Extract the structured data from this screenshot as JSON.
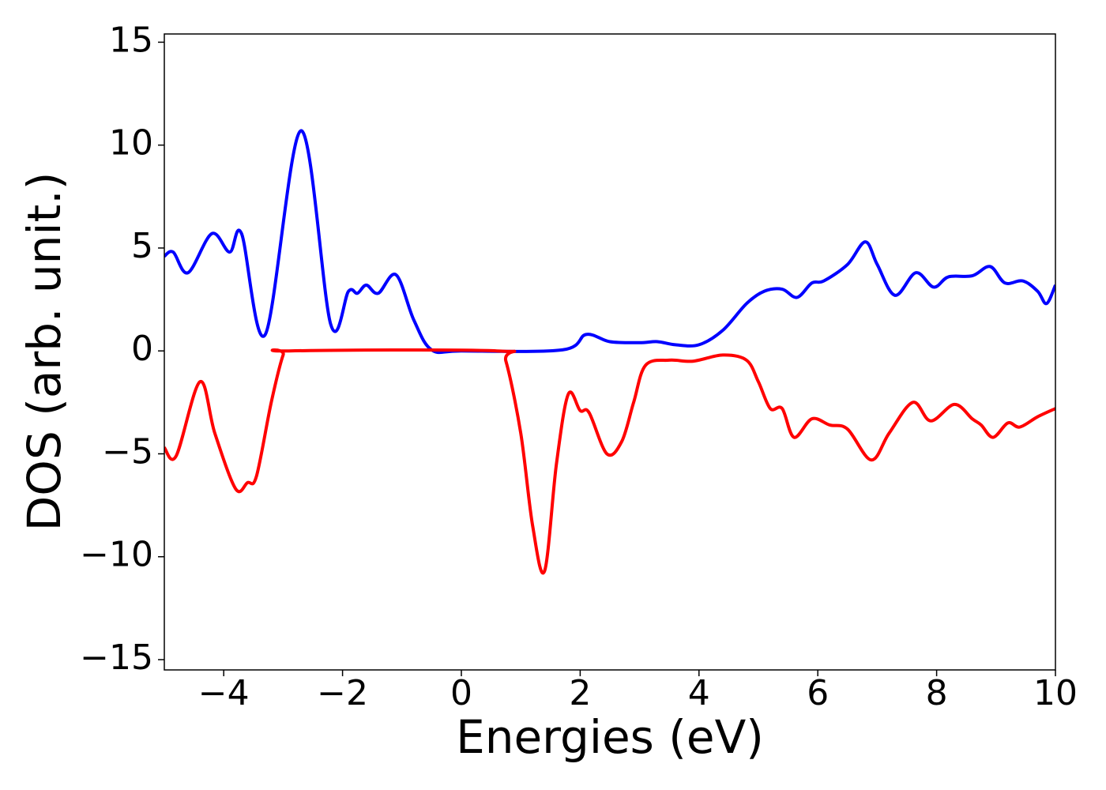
{
  "chart_data": {
    "type": "line",
    "xlabel": "Energies (eV)",
    "ylabel": "DOS (arb. unit.)",
    "xlim": [
      -5,
      10
    ],
    "ylim": [
      -15.5,
      15.4
    ],
    "xticks": [
      {
        "value": -4,
        "label": "−4"
      },
      {
        "value": -2,
        "label": "−2"
      },
      0,
      2,
      4,
      6,
      8,
      10
    ],
    "yticks": [
      {
        "value": -15,
        "label": "−15"
      },
      {
        "value": -10,
        "label": "−10"
      },
      {
        "value": -5,
        "label": "−5"
      },
      0,
      5,
      10,
      15
    ],
    "grid": false,
    "series": [
      {
        "color": "#0000ff",
        "x": [
          -5,
          -4.85,
          -4.6,
          -4.2,
          -3.9,
          -3.7,
          -3.3,
          -2.7,
          -2.2,
          -1.9,
          -1.75,
          -1.6,
          -1.4,
          -1.1,
          -0.8,
          -0.5,
          0,
          1.7,
          2.1,
          2.5,
          3,
          3.3,
          3.6,
          4,
          4.4,
          4.8,
          5.1,
          5.4,
          5.65,
          5.9,
          6.1,
          6.5,
          6.8,
          7,
          7.3,
          7.65,
          7.95,
          8.2,
          8.6,
          8.9,
          9.15,
          9.45,
          9.7,
          9.85,
          10
        ],
        "values": [
          4.6,
          4.8,
          3.8,
          5.7,
          4.8,
          5.7,
          0.8,
          10.7,
          1.3,
          2.9,
          2.8,
          3.2,
          2.8,
          3.7,
          1.5,
          0.05,
          0,
          0.05,
          0.8,
          0.45,
          0.4,
          0.45,
          0.3,
          0.3,
          1.0,
          2.3,
          2.9,
          3.0,
          2.6,
          3.3,
          3.4,
          4.2,
          5.3,
          4.2,
          2.7,
          3.8,
          3.1,
          3.6,
          3.65,
          4.1,
          3.3,
          3.4,
          2.9,
          2.3,
          3.2
        ]
      },
      {
        "color": "#ff0000",
        "x": [
          -5,
          -4.8,
          -4.4,
          -4.15,
          -3.8,
          -3.6,
          -3.45,
          -3.2,
          -3,
          -2.9,
          0.6,
          0.75,
          1,
          1.2,
          1.4,
          1.6,
          1.8,
          2,
          2.15,
          2.45,
          2.7,
          2.9,
          3.1,
          3.5,
          3.9,
          4.4,
          4.8,
          5,
          5.2,
          5.4,
          5.6,
          5.9,
          6.2,
          6.5,
          6.9,
          7.2,
          7.6,
          7.9,
          8.3,
          8.6,
          8.75,
          8.95,
          9.2,
          9.4,
          9.7,
          10
        ],
        "values": [
          -4.7,
          -5.1,
          -1.5,
          -4.0,
          -6.7,
          -6.4,
          -6.1,
          -2.5,
          -0.2,
          0,
          0,
          -0.5,
          -4,
          -8.5,
          -10.7,
          -5.5,
          -2.1,
          -2.9,
          -3.0,
          -5.0,
          -4.4,
          -2.5,
          -0.7,
          -0.45,
          -0.5,
          -0.2,
          -0.45,
          -1.5,
          -2.8,
          -2.8,
          -4.2,
          -3.3,
          -3.6,
          -3.8,
          -5.3,
          -4.0,
          -2.5,
          -3.4,
          -2.6,
          -3.3,
          -3.6,
          -4.2,
          -3.5,
          -3.7,
          -3.2,
          -2.8
        ]
      }
    ]
  }
}
